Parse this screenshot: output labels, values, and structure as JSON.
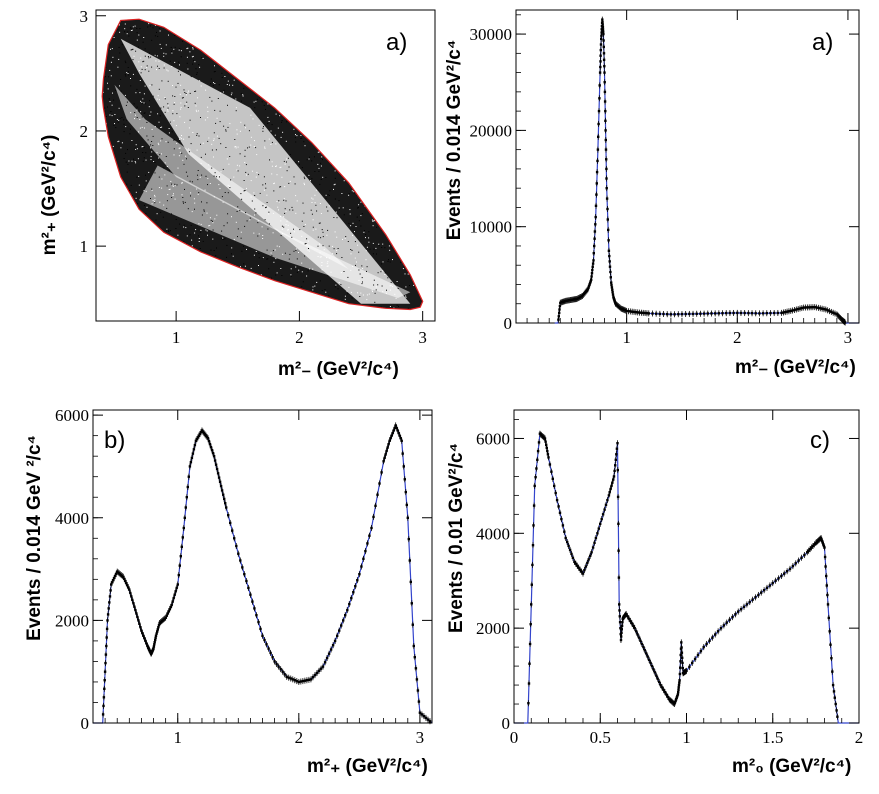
{
  "colors": {
    "fit": "#3344cc",
    "boundary": "#dd2222",
    "data": "#000000",
    "frame": "#000000"
  },
  "chart_data": [
    {
      "type": "scatter",
      "panel_label": "a)",
      "xlabel": "m²₋ (GeV²/c⁴)",
      "ylabel": "m²₊ (GeV²/c⁴)",
      "xlim": [
        0.35,
        3.1
      ],
      "ylim": [
        0.35,
        3.05
      ],
      "xticks": [
        "1",
        "2",
        "3"
      ],
      "yticks": [
        "1",
        "2",
        "3"
      ],
      "boundary": {
        "x": [
          0.41,
          0.45,
          0.55,
          0.7,
          0.9,
          1.2,
          1.5,
          1.8,
          2.1,
          2.4,
          2.7,
          2.9,
          3.0,
          2.98,
          2.9,
          2.7,
          2.4,
          2.1,
          1.8,
          1.5,
          1.2,
          0.9,
          0.7,
          0.55,
          0.45,
          0.41,
          0.4,
          0.41
        ],
        "y": [
          2.45,
          2.75,
          2.96,
          2.97,
          2.9,
          2.7,
          2.45,
          2.2,
          1.9,
          1.55,
          1.1,
          0.75,
          0.52,
          0.47,
          0.45,
          0.46,
          0.5,
          0.6,
          0.7,
          0.82,
          0.95,
          1.12,
          1.32,
          1.6,
          1.95,
          2.2,
          2.3,
          2.45
        ]
      }
    },
    {
      "type": "line",
      "panel_label": "a)",
      "xlabel": "m²₋ (GeV²/c⁴)",
      "ylabel": "Events / 0.014 GeV²/c⁴",
      "xlim": [
        0,
        3.1
      ],
      "ylim": [
        0,
        32500
      ],
      "xticks": [
        "1",
        "2",
        "3"
      ],
      "yticks": [
        "0",
        "10000",
        "20000",
        "30000"
      ],
      "x": [
        0.35,
        0.38,
        0.4,
        0.45,
        0.5,
        0.55,
        0.6,
        0.65,
        0.68,
        0.7,
        0.72,
        0.74,
        0.76,
        0.77,
        0.78,
        0.79,
        0.8,
        0.81,
        0.82,
        0.84,
        0.86,
        0.88,
        0.9,
        0.95,
        1.0,
        1.1,
        1.2,
        1.4,
        1.6,
        1.8,
        2.0,
        2.2,
        2.4,
        2.5,
        2.6,
        2.7,
        2.8,
        2.9,
        2.95,
        2.98,
        3.0,
        3.1
      ],
      "y": [
        0,
        0,
        2100,
        2300,
        2400,
        2500,
        2800,
        3500,
        4500,
        6500,
        11000,
        18000,
        26000,
        29500,
        31500,
        30000,
        26000,
        20000,
        14000,
        7500,
        4200,
        2700,
        2000,
        1500,
        1250,
        1100,
        1000,
        900,
        950,
        1000,
        1050,
        1000,
        1050,
        1300,
        1600,
        1650,
        1400,
        900,
        300,
        0,
        0,
        0
      ]
    },
    {
      "type": "line",
      "panel_label": "b)",
      "xlabel": "m²₊ (GeV²/c⁴)",
      "ylabel": "Events / 0.014 GeV ²/c⁴",
      "xlim": [
        0.3,
        3.1
      ],
      "ylim": [
        0,
        6100
      ],
      "xticks": [
        "1",
        "2",
        "3"
      ],
      "yticks": [
        "0",
        "2000",
        "4000",
        "6000"
      ],
      "x": [
        0.3,
        0.38,
        0.4,
        0.42,
        0.45,
        0.5,
        0.55,
        0.6,
        0.65,
        0.7,
        0.75,
        0.78,
        0.8,
        0.82,
        0.85,
        0.9,
        0.95,
        1.0,
        1.05,
        1.1,
        1.15,
        1.2,
        1.25,
        1.3,
        1.35,
        1.4,
        1.5,
        1.6,
        1.7,
        1.8,
        1.9,
        2.0,
        2.1,
        2.2,
        2.3,
        2.4,
        2.5,
        2.6,
        2.7,
        2.75,
        2.8,
        2.85,
        2.9,
        2.95,
        3.0,
        3.1
      ],
      "y": [
        0,
        0,
        1000,
        2000,
        2700,
        2950,
        2850,
        2600,
        2200,
        1800,
        1500,
        1350,
        1450,
        1700,
        1950,
        2050,
        2300,
        2700,
        3800,
        5000,
        5500,
        5700,
        5550,
        5200,
        4700,
        4200,
        3300,
        2500,
        1700,
        1200,
        900,
        800,
        850,
        1100,
        1600,
        2200,
        2900,
        3800,
        5100,
        5500,
        5800,
        5500,
        4000,
        1500,
        200,
        0
      ]
    },
    {
      "type": "line",
      "panel_label": "c)",
      "xlabel": "m²₀ (GeV²/c⁴)",
      "ylabel": "Events / 0.01 GeV²/c⁴",
      "xlim": [
        0,
        2
      ],
      "ylim": [
        0,
        6600
      ],
      "xticks": [
        "0",
        "0.5",
        "1",
        "1.5",
        "2"
      ],
      "yticks": [
        "0",
        "2000",
        "4000",
        "6000"
      ],
      "x": [
        0,
        0.08,
        0.1,
        0.12,
        0.15,
        0.18,
        0.2,
        0.25,
        0.3,
        0.35,
        0.4,
        0.45,
        0.5,
        0.55,
        0.58,
        0.6,
        0.61,
        0.62,
        0.63,
        0.65,
        0.7,
        0.75,
        0.8,
        0.85,
        0.9,
        0.93,
        0.95,
        0.96,
        0.97,
        0.98,
        1.0,
        1.1,
        1.2,
        1.3,
        1.4,
        1.5,
        1.6,
        1.7,
        1.75,
        1.78,
        1.8,
        1.82,
        1.85,
        1.88,
        2.0
      ],
      "y": [
        0,
        0,
        2500,
        5000,
        6100,
        6000,
        5600,
        4700,
        3900,
        3400,
        3150,
        3600,
        4200,
        4800,
        5200,
        5900,
        2500,
        1750,
        2200,
        2300,
        2000,
        1600,
        1200,
        800,
        500,
        400,
        600,
        900,
        1700,
        1050,
        1100,
        1600,
        2000,
        2350,
        2650,
        2950,
        3250,
        3600,
        3800,
        3900,
        3700,
        2500,
        800,
        0,
        0
      ]
    }
  ]
}
